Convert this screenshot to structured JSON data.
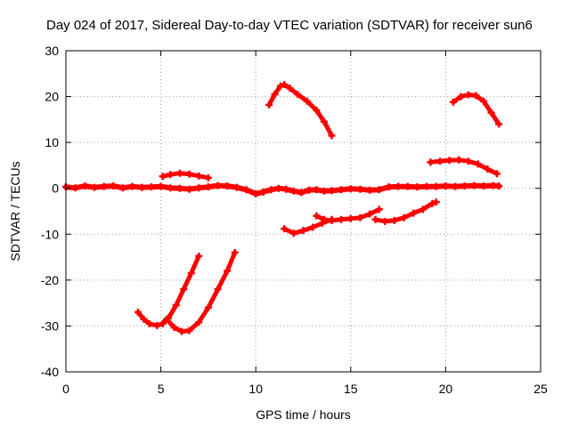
{
  "chart_data": {
    "type": "line",
    "title": "Day 024 of 2017, Sidereal Day-to-day VTEC variation (SDTVAR) for receiver sun6",
    "xlabel": "GPS time / hours",
    "ylabel": "SDTVAR / TECUs",
    "xlim": [
      0,
      25
    ],
    "ylim": [
      -40,
      30
    ],
    "xticks": [
      0,
      5,
      10,
      15,
      20,
      25
    ],
    "yticks": [
      -40,
      -30,
      -20,
      -10,
      0,
      10,
      20,
      30
    ],
    "grid": true,
    "legend": "none",
    "color": "#ff0000",
    "series": [
      {
        "points": [
          [
            0.0,
            0.3
          ],
          [
            0.5,
            0.1
          ],
          [
            1.0,
            0.5
          ],
          [
            1.5,
            0.2
          ],
          [
            2.0,
            0.4
          ],
          [
            2.5,
            0.5
          ],
          [
            3.0,
            0.1
          ],
          [
            3.5,
            0.4
          ],
          [
            4.0,
            0.2
          ],
          [
            4.5,
            0.3
          ],
          [
            5.0,
            0.4
          ],
          [
            5.5,
            0.1
          ],
          [
            6.0,
            0.0
          ],
          [
            6.5,
            -0.2
          ],
          [
            7.0,
            0.1
          ],
          [
            7.5,
            0.3
          ],
          [
            8.0,
            0.6
          ],
          [
            8.5,
            0.5
          ],
          [
            9.0,
            0.2
          ],
          [
            9.5,
            -0.3
          ],
          [
            10.0,
            -1.2
          ],
          [
            10.4,
            -0.8
          ],
          [
            10.8,
            -0.3
          ],
          [
            11.2,
            0.0
          ],
          [
            11.6,
            -0.2
          ],
          [
            12.0,
            -0.6
          ],
          [
            12.4,
            -0.9
          ],
          [
            12.8,
            -0.4
          ],
          [
            13.2,
            -0.3
          ],
          [
            13.6,
            -0.6
          ],
          [
            14.0,
            -0.5
          ],
          [
            14.5,
            -0.3
          ],
          [
            15.0,
            -0.1
          ],
          [
            15.5,
            -0.2
          ],
          [
            16.0,
            -0.4
          ],
          [
            16.5,
            -0.3
          ],
          [
            17.0,
            0.3
          ],
          [
            17.5,
            0.4
          ],
          [
            18.0,
            0.4
          ],
          [
            18.5,
            0.3
          ],
          [
            19.0,
            0.4
          ],
          [
            19.5,
            0.4
          ],
          [
            20.0,
            0.5
          ],
          [
            20.5,
            0.4
          ],
          [
            21.0,
            0.5
          ],
          [
            21.5,
            0.6
          ],
          [
            22.0,
            0.5
          ],
          [
            22.5,
            0.6
          ],
          [
            22.8,
            0.5
          ]
        ]
      },
      {
        "points": [
          [
            5.1,
            2.6
          ],
          [
            5.5,
            3.0
          ],
          [
            6.0,
            3.3
          ],
          [
            6.5,
            3.1
          ],
          [
            7.0,
            2.7
          ],
          [
            7.5,
            2.3
          ]
        ]
      },
      {
        "points": [
          [
            3.8,
            -27.0
          ],
          [
            4.1,
            -28.5
          ],
          [
            4.4,
            -29.5
          ],
          [
            4.8,
            -29.9
          ],
          [
            5.1,
            -29.5
          ],
          [
            5.4,
            -28.3
          ],
          [
            5.8,
            -25.5
          ],
          [
            6.2,
            -22.0
          ],
          [
            6.6,
            -18.5
          ],
          [
            7.0,
            -14.8
          ]
        ]
      },
      {
        "points": [
          [
            5.3,
            -28.5
          ],
          [
            5.7,
            -30.3
          ],
          [
            6.1,
            -31.2
          ],
          [
            6.5,
            -31.0
          ],
          [
            7.0,
            -29.2
          ],
          [
            7.5,
            -26.0
          ],
          [
            8.0,
            -22.0
          ],
          [
            8.5,
            -18.0
          ],
          [
            8.9,
            -14.0
          ]
        ]
      },
      {
        "points": [
          [
            10.7,
            18.2
          ],
          [
            11.0,
            20.5
          ],
          [
            11.3,
            22.3
          ],
          [
            11.5,
            22.6
          ],
          [
            11.8,
            21.8
          ],
          [
            12.2,
            20.5
          ],
          [
            12.7,
            19.0
          ],
          [
            13.2,
            17.0
          ],
          [
            13.6,
            14.5
          ],
          [
            14.0,
            11.5
          ]
        ]
      },
      {
        "points": [
          [
            11.5,
            -8.8
          ],
          [
            12.0,
            -9.8
          ],
          [
            12.5,
            -9.2
          ],
          [
            13.0,
            -8.5
          ],
          [
            13.5,
            -7.6
          ],
          [
            14.0,
            -6.8
          ]
        ]
      },
      {
        "points": [
          [
            13.2,
            -6.0
          ],
          [
            13.6,
            -6.8
          ],
          [
            14.0,
            -7.0
          ],
          [
            14.5,
            -6.8
          ],
          [
            15.0,
            -6.6
          ],
          [
            15.5,
            -6.4
          ],
          [
            16.0,
            -5.6
          ],
          [
            16.5,
            -4.6
          ]
        ]
      },
      {
        "points": [
          [
            16.3,
            -6.8
          ],
          [
            16.8,
            -7.2
          ],
          [
            17.3,
            -7.0
          ],
          [
            17.8,
            -6.4
          ],
          [
            18.3,
            -5.4
          ],
          [
            18.8,
            -4.6
          ],
          [
            19.3,
            -3.3
          ],
          [
            19.5,
            -3.0
          ]
        ]
      },
      {
        "points": [
          [
            19.2,
            5.7
          ],
          [
            19.7,
            5.9
          ],
          [
            20.2,
            6.1
          ],
          [
            20.7,
            6.2
          ],
          [
            21.2,
            5.9
          ],
          [
            21.7,
            5.3
          ],
          [
            22.2,
            4.2
          ],
          [
            22.7,
            3.2
          ]
        ]
      },
      {
        "points": [
          [
            20.4,
            18.8
          ],
          [
            20.8,
            20.0
          ],
          [
            21.2,
            20.4
          ],
          [
            21.6,
            20.2
          ],
          [
            22.0,
            19.0
          ],
          [
            22.4,
            16.5
          ],
          [
            22.8,
            14.0
          ]
        ]
      }
    ]
  }
}
